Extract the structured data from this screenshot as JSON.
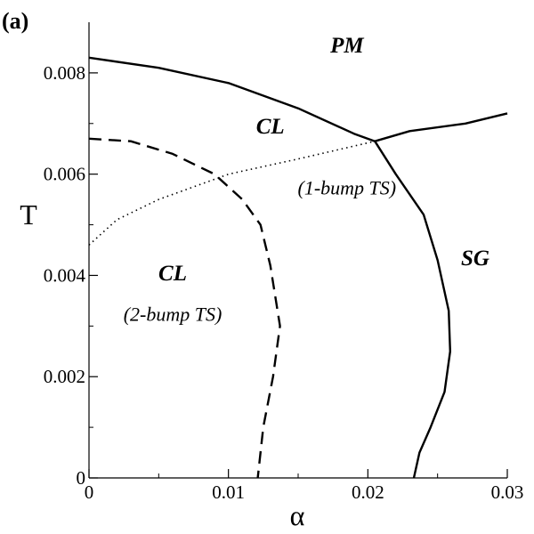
{
  "chart_data": {
    "type": "line",
    "panel_label": "(a)",
    "xlabel": "α",
    "ylabel": "T",
    "xlim": [
      0,
      0.03
    ],
    "ylim": [
      0,
      0.009
    ],
    "x_ticks": [
      {
        "value": 0,
        "label": "0"
      },
      {
        "value": 0.01,
        "label": "0.01"
      },
      {
        "value": 0.02,
        "label": "0.02"
      },
      {
        "value": 0.03,
        "label": "0.03"
      }
    ],
    "y_ticks": [
      {
        "value": 0,
        "label": "0"
      },
      {
        "value": 0.002,
        "label": "0.002"
      },
      {
        "value": 0.004,
        "label": "0.004"
      },
      {
        "value": 0.006,
        "label": "0.006"
      },
      {
        "value": 0.008,
        "label": "0.008"
      }
    ],
    "x_minor_ticks": [
      0.005,
      0.015,
      0.025
    ],
    "y_minor_ticks": [
      0.001,
      0.003,
      0.005,
      0.007
    ],
    "grid": false,
    "series": [
      {
        "style": "solid",
        "points": [
          [
            0,
            0.0083
          ],
          [
            0.005,
            0.0081
          ],
          [
            0.01,
            0.0078
          ],
          [
            0.015,
            0.0073
          ],
          [
            0.019,
            0.0068
          ],
          [
            0.0205,
            0.00665
          ],
          [
            0.022,
            0.006
          ],
          [
            0.024,
            0.0052
          ],
          [
            0.025,
            0.0043
          ],
          [
            0.0258,
            0.0033
          ],
          [
            0.0259,
            0.0025
          ],
          [
            0.0255,
            0.0017
          ],
          [
            0.0245,
            0.001
          ],
          [
            0.0237,
            0.0005
          ],
          [
            0.0233,
            0
          ]
        ]
      },
      {
        "style": "solid",
        "points": [
          [
            0.0205,
            0.00665
          ],
          [
            0.023,
            0.00685
          ],
          [
            0.027,
            0.007
          ],
          [
            0.03,
            0.0072
          ]
        ]
      },
      {
        "style": "dashed",
        "points": [
          [
            0,
            0.0067
          ],
          [
            0.003,
            0.00665
          ],
          [
            0.006,
            0.0064
          ],
          [
            0.009,
            0.006
          ],
          [
            0.011,
            0.0055
          ],
          [
            0.0123,
            0.005
          ],
          [
            0.013,
            0.0042
          ],
          [
            0.0137,
            0.003
          ],
          [
            0.0132,
            0.002
          ],
          [
            0.0125,
            0.001
          ],
          [
            0.0121,
            0
          ]
        ]
      },
      {
        "style": "dotted",
        "points": [
          [
            0,
            0.0046
          ],
          [
            0.002,
            0.0051
          ],
          [
            0.005,
            0.0055
          ],
          [
            0.01,
            0.006
          ],
          [
            0.015,
            0.0063
          ],
          [
            0.0205,
            0.00665
          ]
        ]
      }
    ],
    "annotations": [
      {
        "text": "PM",
        "x": 0.0185,
        "y": 0.0084,
        "style": "bold"
      },
      {
        "text": "CL",
        "x": 0.013,
        "y": 0.0068,
        "style": "bold"
      },
      {
        "text": "(1-bump TS)",
        "x": 0.0185,
        "y": 0.0056,
        "style": "italic"
      },
      {
        "text": "SG",
        "x": 0.0277,
        "y": 0.0042,
        "style": "bold"
      },
      {
        "text": "CL",
        "x": 0.006,
        "y": 0.0039,
        "style": "bold"
      },
      {
        "text": "(2-bump TS)",
        "x": 0.006,
        "y": 0.0031,
        "style": "italic"
      }
    ]
  }
}
